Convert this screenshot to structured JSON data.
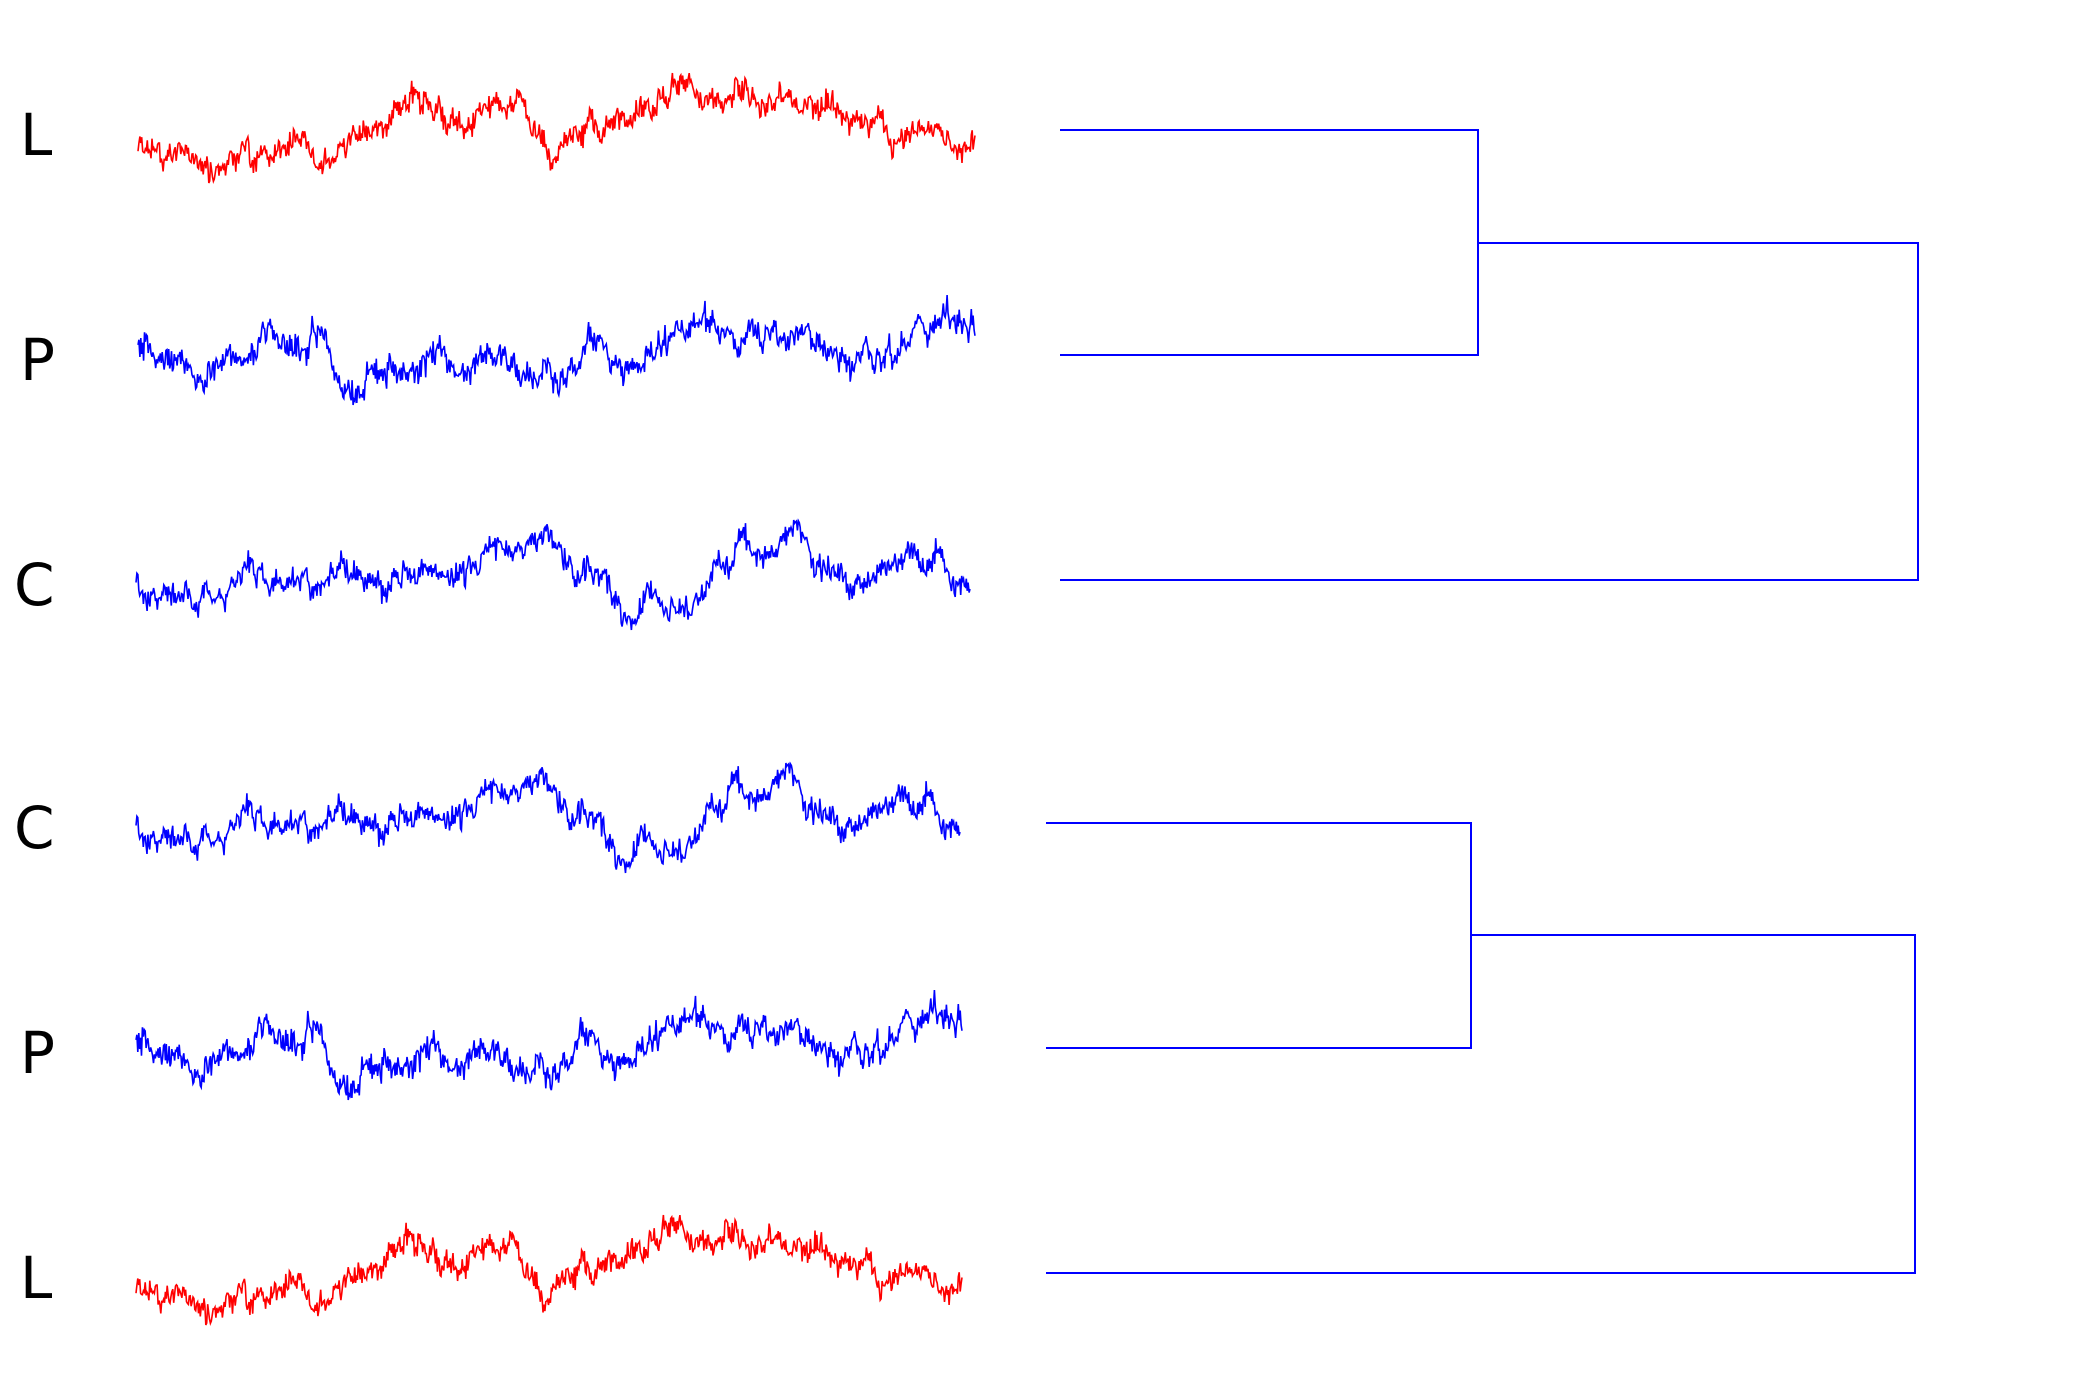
{
  "colors": {
    "red": "#ff0000",
    "blue": "#0000ff"
  },
  "panels": [
    {
      "name": "top",
      "rows": [
        {
          "label": "L",
          "color": "red",
          "seed": 11
        },
        {
          "label": "P",
          "color": "blue",
          "seed": 23
        },
        {
          "label": "C",
          "color": "blue",
          "seed": 37
        }
      ],
      "dendrogram": {
        "merges": [
          {
            "children": [
              "L",
              "P"
            ]
          },
          {
            "children": [
              "L+P",
              "C"
            ]
          }
        ]
      }
    },
    {
      "name": "bottom",
      "rows": [
        {
          "label": "C",
          "color": "blue",
          "seed": 37
        },
        {
          "label": "P",
          "color": "blue",
          "seed": 23
        },
        {
          "label": "L",
          "color": "red",
          "seed": 11
        }
      ],
      "dendrogram": {
        "merges": [
          {
            "children": [
              "C",
              "P"
            ]
          },
          {
            "children": [
              "C+P",
              "L"
            ]
          }
        ]
      }
    }
  ]
}
